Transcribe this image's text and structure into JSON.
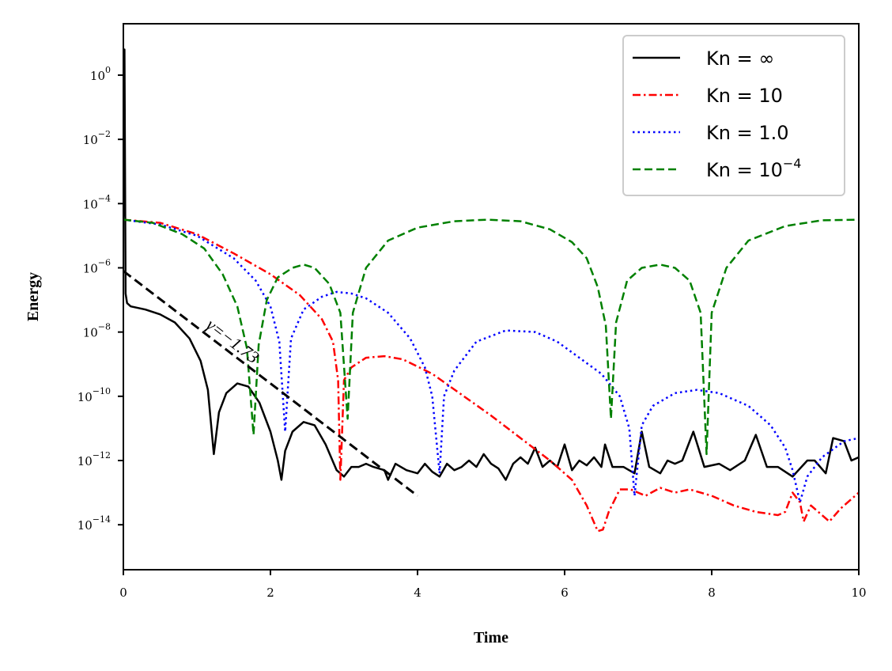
{
  "chart_data": {
    "type": "line",
    "title": "",
    "xlabel": "Time",
    "ylabel": "Energy",
    "xlim": [
      0,
      10
    ],
    "ylim_log10": [
      -15.4,
      1.6
    ],
    "yscale": "log",
    "x_ticks": [
      0,
      2,
      4,
      6,
      8,
      10
    ],
    "x_tick_labels": [
      "0",
      "2",
      "4",
      "6",
      "8",
      "10"
    ],
    "y_tick_exponents": [
      0,
      -2,
      -4,
      -6,
      -8,
      -10,
      -12,
      -14
    ],
    "y_tick_base": "10",
    "y_tick_labels": [
      "0",
      "−2",
      "−4",
      "−6",
      "−8",
      "−10",
      "−12",
      "−14"
    ],
    "legend_position": "top-right",
    "series": [
      {
        "name": "Kn = ∞",
        "legend_main": "Kn = ∞",
        "legend_sup": "",
        "color": "#000000",
        "style": "solid",
        "points_log10": [
          [
            0,
            -4.4
          ],
          [
            0.015,
            0.8
          ],
          [
            0.03,
            -6.8
          ],
          [
            0.05,
            -7.1
          ],
          [
            0.1,
            -7.2
          ],
          [
            0.3,
            -7.3
          ],
          [
            0.5,
            -7.45
          ],
          [
            0.7,
            -7.7
          ],
          [
            0.9,
            -8.2
          ],
          [
            1.05,
            -8.9
          ],
          [
            1.15,
            -9.8
          ],
          [
            1.23,
            -11.8
          ],
          [
            1.3,
            -10.5
          ],
          [
            1.4,
            -9.9
          ],
          [
            1.55,
            -9.6
          ],
          [
            1.7,
            -9.7
          ],
          [
            1.85,
            -10.2
          ],
          [
            2.0,
            -11.1
          ],
          [
            2.1,
            -12.0
          ],
          [
            2.15,
            -12.6
          ],
          [
            2.2,
            -11.7
          ],
          [
            2.3,
            -11.1
          ],
          [
            2.45,
            -10.8
          ],
          [
            2.6,
            -10.9
          ],
          [
            2.75,
            -11.5
          ],
          [
            2.9,
            -12.3
          ],
          [
            3.0,
            -12.5
          ],
          [
            3.1,
            -12.2
          ],
          [
            3.2,
            -12.2
          ],
          [
            3.3,
            -12.1
          ],
          [
            3.4,
            -12.2
          ],
          [
            3.55,
            -12.3
          ],
          [
            3.6,
            -12.6
          ],
          [
            3.7,
            -12.1
          ],
          [
            3.85,
            -12.3
          ],
          [
            4.0,
            -12.4
          ],
          [
            4.1,
            -12.1
          ],
          [
            4.2,
            -12.35
          ],
          [
            4.3,
            -12.5
          ],
          [
            4.4,
            -12.1
          ],
          [
            4.5,
            -12.3
          ],
          [
            4.6,
            -12.2
          ],
          [
            4.7,
            -12.0
          ],
          [
            4.8,
            -12.2
          ],
          [
            4.9,
            -11.8
          ],
          [
            5.0,
            -12.1
          ],
          [
            5.1,
            -12.25
          ],
          [
            5.2,
            -12.6
          ],
          [
            5.3,
            -12.1
          ],
          [
            5.4,
            -11.9
          ],
          [
            5.5,
            -12.1
          ],
          [
            5.6,
            -11.6
          ],
          [
            5.7,
            -12.2
          ],
          [
            5.8,
            -12.0
          ],
          [
            5.9,
            -12.2
          ],
          [
            6.0,
            -11.5
          ],
          [
            6.1,
            -12.3
          ],
          [
            6.2,
            -12.0
          ],
          [
            6.3,
            -12.15
          ],
          [
            6.4,
            -11.9
          ],
          [
            6.5,
            -12.2
          ],
          [
            6.55,
            -11.5
          ],
          [
            6.65,
            -12.2
          ],
          [
            6.8,
            -12.2
          ],
          [
            6.95,
            -12.4
          ],
          [
            7.05,
            -11.1
          ],
          [
            7.15,
            -12.2
          ],
          [
            7.3,
            -12.4
          ],
          [
            7.4,
            -12.0
          ],
          [
            7.5,
            -12.1
          ],
          [
            7.6,
            -12.0
          ],
          [
            7.75,
            -11.1
          ],
          [
            7.9,
            -12.2
          ],
          [
            8.1,
            -12.1
          ],
          [
            8.25,
            -12.3
          ],
          [
            8.45,
            -12.0
          ],
          [
            8.6,
            -11.2
          ],
          [
            8.75,
            -12.2
          ],
          [
            8.9,
            -12.2
          ],
          [
            9.1,
            -12.5
          ],
          [
            9.3,
            -12.0
          ],
          [
            9.4,
            -12.0
          ],
          [
            9.55,
            -12.4
          ],
          [
            9.65,
            -11.3
          ],
          [
            9.8,
            -11.4
          ],
          [
            9.9,
            -12.0
          ],
          [
            10.0,
            -11.9
          ]
        ]
      },
      {
        "name": "Kn = 10",
        "legend_main": "Kn = 10",
        "legend_sup": "",
        "color": "#ff0000",
        "style": "dashdot",
        "points_log10": [
          [
            0,
            -4.5
          ],
          [
            0.5,
            -4.6
          ],
          [
            1.0,
            -4.95
          ],
          [
            1.5,
            -5.55
          ],
          [
            2.0,
            -6.2
          ],
          [
            2.4,
            -6.85
          ],
          [
            2.7,
            -7.6
          ],
          [
            2.85,
            -8.3
          ],
          [
            2.92,
            -9.5
          ],
          [
            2.95,
            -12.6
          ],
          [
            3.0,
            -9.5
          ],
          [
            3.1,
            -9.1
          ],
          [
            3.3,
            -8.8
          ],
          [
            3.55,
            -8.75
          ],
          [
            3.8,
            -8.85
          ],
          [
            4.2,
            -9.3
          ],
          [
            4.6,
            -9.95
          ],
          [
            5.0,
            -10.6
          ],
          [
            5.4,
            -11.3
          ],
          [
            5.8,
            -12.0
          ],
          [
            6.1,
            -12.6
          ],
          [
            6.3,
            -13.4
          ],
          [
            6.45,
            -14.2
          ],
          [
            6.52,
            -14.15
          ],
          [
            6.6,
            -13.6
          ],
          [
            6.75,
            -12.9
          ],
          [
            6.9,
            -12.9
          ],
          [
            7.0,
            -13.0
          ],
          [
            7.1,
            -13.1
          ],
          [
            7.3,
            -12.85
          ],
          [
            7.5,
            -13.0
          ],
          [
            7.7,
            -12.9
          ],
          [
            8.0,
            -13.1
          ],
          [
            8.3,
            -13.4
          ],
          [
            8.6,
            -13.6
          ],
          [
            8.9,
            -13.7
          ],
          [
            9.0,
            -13.6
          ],
          [
            9.1,
            -13.0
          ],
          [
            9.2,
            -13.3
          ],
          [
            9.25,
            -13.9
          ],
          [
            9.35,
            -13.4
          ],
          [
            9.5,
            -13.7
          ],
          [
            9.6,
            -13.9
          ],
          [
            9.75,
            -13.5
          ],
          [
            9.9,
            -13.2
          ],
          [
            10.0,
            -13.0
          ]
        ]
      },
      {
        "name": "Kn = 1.0",
        "legend_main": "Kn = 1.0",
        "legend_sup": "",
        "color": "#0000ff",
        "style": "dotted",
        "points_log10": [
          [
            0,
            -4.5
          ],
          [
            0.5,
            -4.65
          ],
          [
            1.0,
            -5.0
          ],
          [
            1.5,
            -5.7
          ],
          [
            1.8,
            -6.4
          ],
          [
            2.0,
            -7.2
          ],
          [
            2.12,
            -8.3
          ],
          [
            2.2,
            -11.1
          ],
          [
            2.28,
            -8.2
          ],
          [
            2.45,
            -7.3
          ],
          [
            2.7,
            -6.9
          ],
          [
            2.9,
            -6.75
          ],
          [
            3.1,
            -6.8
          ],
          [
            3.3,
            -6.95
          ],
          [
            3.6,
            -7.4
          ],
          [
            3.9,
            -8.2
          ],
          [
            4.1,
            -9.1
          ],
          [
            4.2,
            -10.0
          ],
          [
            4.3,
            -12.4
          ],
          [
            4.36,
            -10.0
          ],
          [
            4.5,
            -9.2
          ],
          [
            4.8,
            -8.3
          ],
          [
            5.2,
            -7.95
          ],
          [
            5.6,
            -8.0
          ],
          [
            5.9,
            -8.3
          ],
          [
            6.2,
            -8.8
          ],
          [
            6.5,
            -9.3
          ],
          [
            6.75,
            -10.0
          ],
          [
            6.88,
            -11.0
          ],
          [
            6.95,
            -13.1
          ],
          [
            7.05,
            -10.9
          ],
          [
            7.2,
            -10.3
          ],
          [
            7.5,
            -9.9
          ],
          [
            7.8,
            -9.8
          ],
          [
            8.1,
            -9.9
          ],
          [
            8.5,
            -10.3
          ],
          [
            8.8,
            -10.9
          ],
          [
            9.0,
            -11.6
          ],
          [
            9.1,
            -12.3
          ],
          [
            9.2,
            -13.3
          ],
          [
            9.3,
            -12.5
          ],
          [
            9.5,
            -11.9
          ],
          [
            9.8,
            -11.4
          ],
          [
            10.0,
            -11.3
          ]
        ]
      },
      {
        "name": "Kn = 10^−4",
        "legend_main": "Kn = 10",
        "legend_sup": "−4",
        "color": "#008000",
        "style": "dashed",
        "points_log10": [
          [
            0,
            -4.5
          ],
          [
            0.4,
            -4.6
          ],
          [
            0.8,
            -4.95
          ],
          [
            1.1,
            -5.4
          ],
          [
            1.35,
            -6.2
          ],
          [
            1.55,
            -7.2
          ],
          [
            1.68,
            -8.5
          ],
          [
            1.77,
            -11.2
          ],
          [
            1.84,
            -8.4
          ],
          [
            1.95,
            -7.0
          ],
          [
            2.1,
            -6.3
          ],
          [
            2.3,
            -6.0
          ],
          [
            2.45,
            -5.9
          ],
          [
            2.6,
            -6.0
          ],
          [
            2.8,
            -6.5
          ],
          [
            2.95,
            -7.4
          ],
          [
            3.05,
            -10.7
          ],
          [
            3.12,
            -7.4
          ],
          [
            3.3,
            -6.0
          ],
          [
            3.6,
            -5.15
          ],
          [
            4.0,
            -4.75
          ],
          [
            4.5,
            -4.55
          ],
          [
            4.95,
            -4.5
          ],
          [
            5.4,
            -4.55
          ],
          [
            5.8,
            -4.8
          ],
          [
            6.1,
            -5.2
          ],
          [
            6.3,
            -5.7
          ],
          [
            6.45,
            -6.6
          ],
          [
            6.56,
            -7.8
          ],
          [
            6.63,
            -10.7
          ],
          [
            6.7,
            -7.7
          ],
          [
            6.85,
            -6.4
          ],
          [
            7.05,
            -6.0
          ],
          [
            7.3,
            -5.9
          ],
          [
            7.5,
            -6.0
          ],
          [
            7.7,
            -6.4
          ],
          [
            7.85,
            -7.4
          ],
          [
            7.93,
            -11.8
          ],
          [
            8.0,
            -7.4
          ],
          [
            8.2,
            -6.0
          ],
          [
            8.5,
            -5.15
          ],
          [
            9.0,
            -4.7
          ],
          [
            9.5,
            -4.52
          ],
          [
            10.0,
            -4.5
          ]
        ]
      }
    ],
    "annotations": [
      {
        "text": "γ=−1.73",
        "slope_line_log10": [
          [
            0,
            -6.1
          ],
          [
            4.0,
            -13.1
          ]
        ]
      }
    ]
  }
}
